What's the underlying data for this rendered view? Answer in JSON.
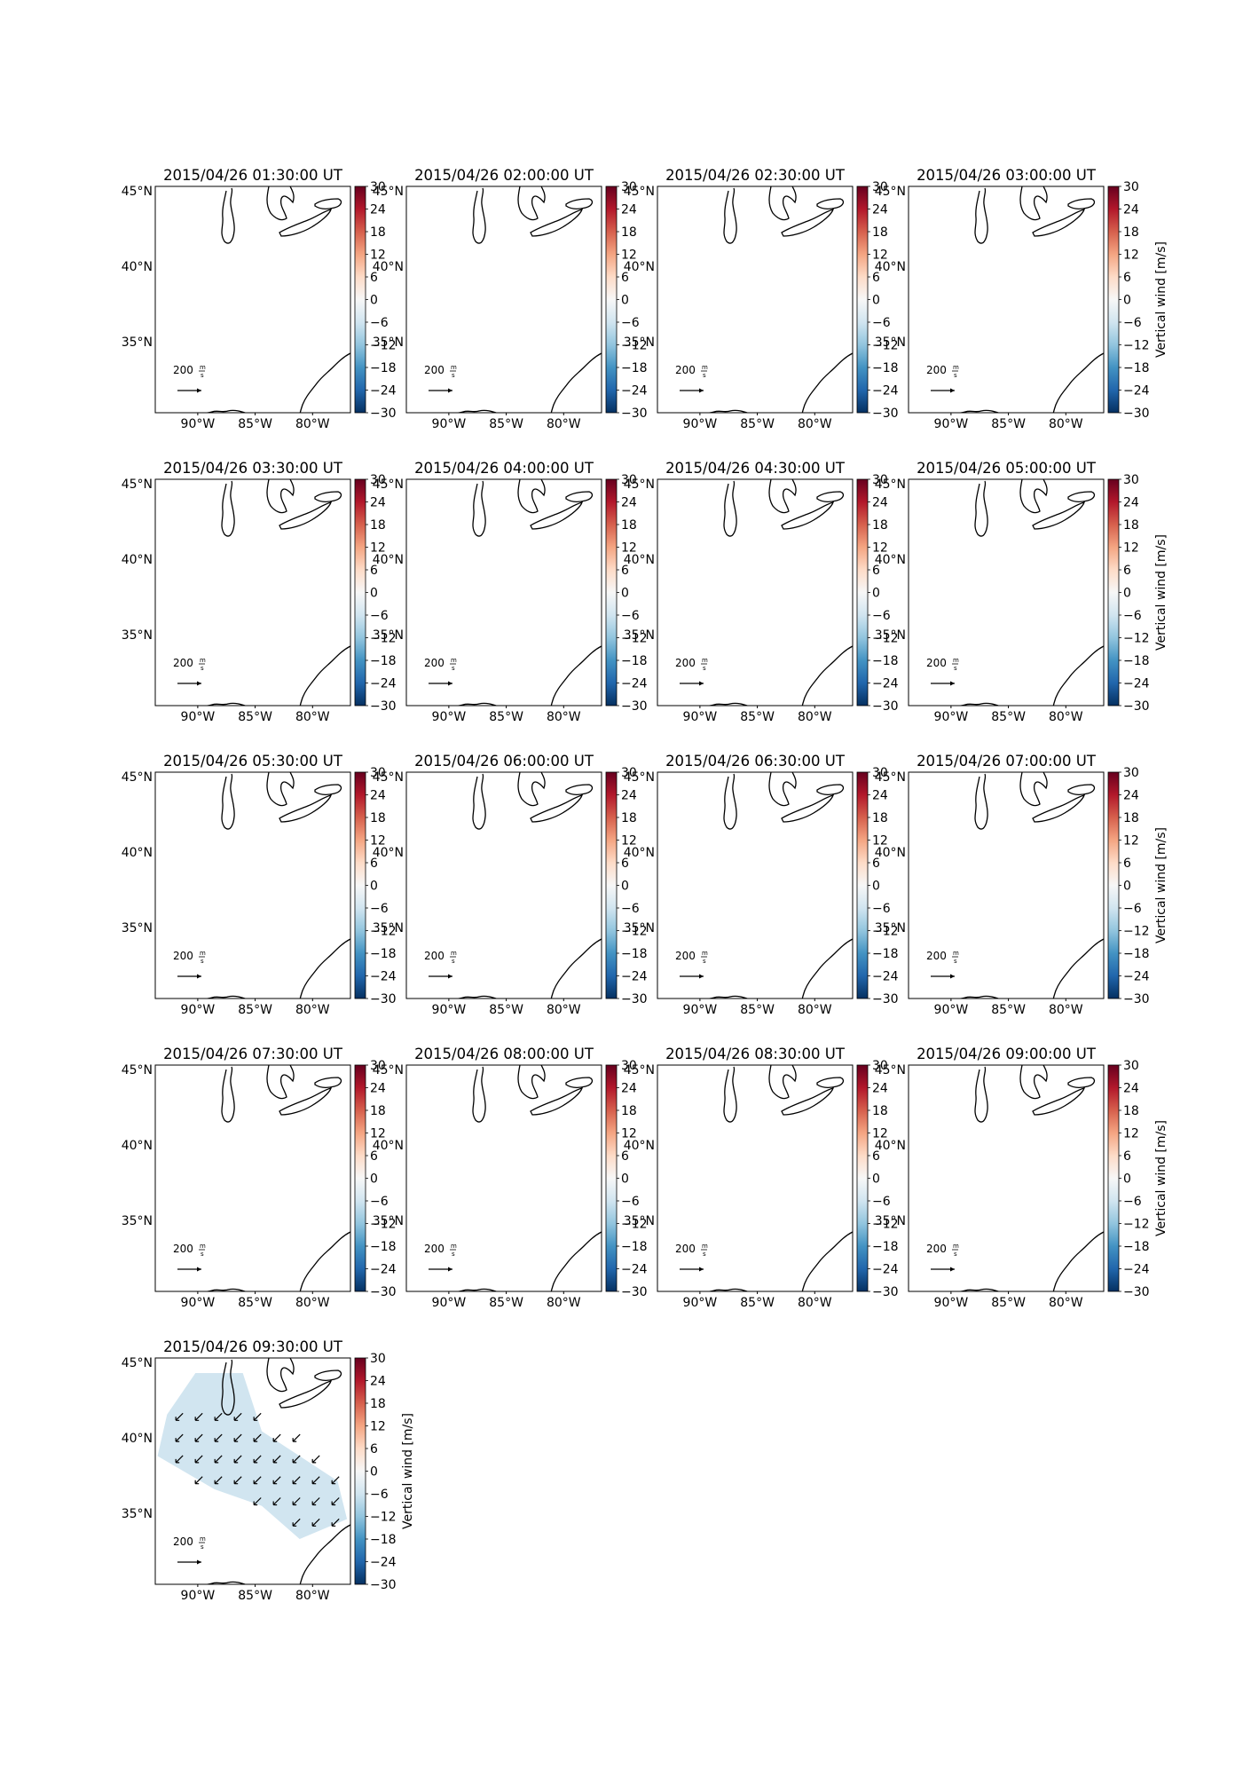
{
  "figure": {
    "colorbar": {
      "label": "Vertical wind [m/s]",
      "ticks": [
        30,
        24,
        18,
        12,
        6,
        0,
        -6,
        -12,
        -18,
        -24,
        -30
      ],
      "range": [
        -30,
        30
      ],
      "colormap_stops": [
        "#67001f",
        "#b2182b",
        "#d6604d",
        "#f4a582",
        "#fddbc7",
        "#f7f7f7",
        "#d1e5f0",
        "#92c5de",
        "#4393c3",
        "#2166ac",
        "#053061"
      ]
    },
    "map": {
      "lat_ticks": [
        "45°N",
        "40°N",
        "35°N"
      ],
      "lat_values": [
        45,
        40,
        35
      ],
      "lon_ticks": [
        "90°W",
        "85°W",
        "80°W"
      ],
      "lon_values": [
        -90,
        -85,
        -80
      ],
      "lon_range": [
        -93.7,
        -76.7
      ],
      "lat_range": [
        30.3,
        45.3
      ]
    },
    "quiver_key": {
      "value": "200",
      "units_num": "m",
      "units_den": "s"
    },
    "vector_color": "#000000"
  },
  "chart_data": [
    {
      "type": "heatmap",
      "title": "2015/04/26 01:30:00 UT",
      "has_data": false
    },
    {
      "type": "heatmap",
      "title": "2015/04/26 02:00:00 UT",
      "has_data": false
    },
    {
      "type": "heatmap",
      "title": "2015/04/26 02:30:00 UT",
      "has_data": false
    },
    {
      "type": "heatmap",
      "title": "2015/04/26 03:00:00 UT",
      "has_data": false
    },
    {
      "type": "heatmap",
      "title": "2015/04/26 03:30:00 UT",
      "has_data": false
    },
    {
      "type": "heatmap",
      "title": "2015/04/26 04:00:00 UT",
      "has_data": false
    },
    {
      "type": "heatmap",
      "title": "2015/04/26 04:30:00 UT",
      "has_data": false
    },
    {
      "type": "heatmap",
      "title": "2015/04/26 05:00:00 UT",
      "has_data": false
    },
    {
      "type": "heatmap",
      "title": "2015/04/26 05:30:00 UT",
      "has_data": false
    },
    {
      "type": "heatmap",
      "title": "2015/04/26 06:00:00 UT",
      "has_data": false
    },
    {
      "type": "heatmap",
      "title": "2015/04/26 06:30:00 UT",
      "has_data": false
    },
    {
      "type": "heatmap",
      "title": "2015/04/26 07:00:00 UT",
      "has_data": false
    },
    {
      "type": "heatmap",
      "title": "2015/04/26 07:30:00 UT",
      "has_data": false
    },
    {
      "type": "heatmap",
      "title": "2015/04/26 08:00:00 UT",
      "has_data": false
    },
    {
      "type": "heatmap",
      "title": "2015/04/26 08:30:00 UT",
      "has_data": false
    },
    {
      "type": "heatmap",
      "title": "2015/04/26 09:00:00 UT",
      "has_data": false
    },
    {
      "type": "heatmap",
      "title": "2015/04/26 09:30:00 UT",
      "has_data": true,
      "field_value": -4,
      "field_lon": [
        -93.5,
        -77.0
      ],
      "field_lat": [
        33.3,
        44.3
      ],
      "vectors": {
        "direction": "southwest",
        "rows": [
          {
            "lat": 41.4,
            "lons": [
              -91.6,
              -89.9,
              -88.2,
              -86.5,
              -84.8
            ]
          },
          {
            "lat": 40.0,
            "lons": [
              -91.6,
              -89.9,
              -88.2,
              -86.5,
              -84.8,
              -83.1,
              -81.4
            ]
          },
          {
            "lat": 38.6,
            "lons": [
              -91.6,
              -89.9,
              -88.2,
              -86.5,
              -84.8,
              -83.1,
              -81.4,
              -79.7
            ]
          },
          {
            "lat": 37.2,
            "lons": [
              -89.9,
              -88.2,
              -86.5,
              -84.8,
              -83.1,
              -81.4,
              -79.7,
              -78.0
            ]
          },
          {
            "lat": 35.8,
            "lons": [
              -84.8,
              -83.1,
              -81.4,
              -79.7,
              -78.0
            ]
          },
          {
            "lat": 34.4,
            "lons": [
              -81.4,
              -79.7,
              -78.0
            ]
          }
        ]
      }
    }
  ]
}
